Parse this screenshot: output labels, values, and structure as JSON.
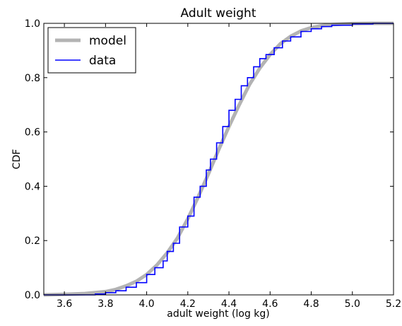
{
  "chart_data": {
    "type": "line",
    "title": "Adult weight",
    "xlabel": "adult weight (log kg)",
    "ylabel": "CDF",
    "xlim": [
      3.5,
      5.2
    ],
    "ylim": [
      0.0,
      1.0
    ],
    "xticks": [
      "3.6",
      "3.8",
      "4.0",
      "4.2",
      "4.4",
      "4.6",
      "4.8",
      "5.0",
      "5.2"
    ],
    "yticks": [
      "0.0",
      "0.2",
      "0.4",
      "0.6",
      "0.8",
      "1.0"
    ],
    "grid": false,
    "legend_position": "top-left",
    "series": [
      {
        "name": "model",
        "color": "#b3b3b3",
        "x": [
          3.5,
          3.6,
          3.7,
          3.8,
          3.85,
          3.9,
          3.95,
          4.0,
          4.05,
          4.1,
          4.15,
          4.2,
          4.25,
          4.3,
          4.35,
          4.4,
          4.45,
          4.5,
          4.55,
          4.6,
          4.65,
          4.7,
          4.75,
          4.8,
          4.85,
          4.9,
          5.0,
          5.1,
          5.2
        ],
        "y": [
          0.0,
          0.002,
          0.005,
          0.012,
          0.02,
          0.033,
          0.05,
          0.075,
          0.11,
          0.155,
          0.21,
          0.28,
          0.36,
          0.445,
          0.535,
          0.62,
          0.7,
          0.775,
          0.835,
          0.885,
          0.925,
          0.952,
          0.972,
          0.984,
          0.991,
          0.995,
          0.999,
          1.0,
          1.0
        ]
      },
      {
        "name": "data",
        "color": "#0000ff",
        "x": [
          3.5,
          3.75,
          3.8,
          3.85,
          3.9,
          3.95,
          4.0,
          4.04,
          4.08,
          4.1,
          4.13,
          4.16,
          4.2,
          4.23,
          4.26,
          4.29,
          4.31,
          4.34,
          4.37,
          4.4,
          4.43,
          4.46,
          4.49,
          4.52,
          4.55,
          4.58,
          4.62,
          4.66,
          4.7,
          4.75,
          4.8,
          4.85,
          4.9,
          5.0,
          5.1,
          5.2
        ],
        "y": [
          0.0,
          0.003,
          0.008,
          0.015,
          0.028,
          0.045,
          0.075,
          0.1,
          0.125,
          0.16,
          0.19,
          0.25,
          0.29,
          0.36,
          0.4,
          0.46,
          0.5,
          0.56,
          0.62,
          0.68,
          0.72,
          0.77,
          0.8,
          0.84,
          0.87,
          0.885,
          0.91,
          0.935,
          0.95,
          0.97,
          0.98,
          0.988,
          0.993,
          0.998,
          1.0,
          1.0
        ]
      }
    ]
  }
}
